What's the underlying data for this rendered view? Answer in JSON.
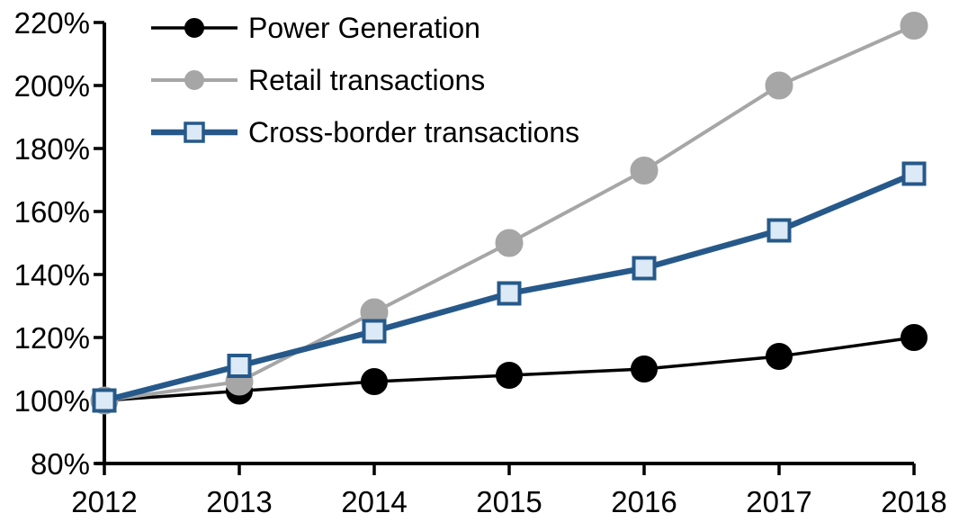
{
  "chart_data": {
    "type": "line",
    "title": "",
    "xlabel": "",
    "ylabel": "",
    "x": [
      "2012",
      "2013",
      "2014",
      "2015",
      "2016",
      "2017",
      "2018"
    ],
    "ylim": [
      80,
      220
    ],
    "ytick_step": 20,
    "ytick_suffix": "%",
    "grid": false,
    "legend_position": "top-left",
    "series": [
      {
        "name": "Power Generation",
        "values": [
          100,
          103,
          106,
          108,
          110,
          114,
          120
        ],
        "color": "#000000",
        "line_width": 3.5,
        "marker": "circle",
        "marker_size": 29,
        "marker_fill": "#000000",
        "marker_border": "#000000"
      },
      {
        "name": "Retail transactions",
        "values": [
          100,
          106,
          128,
          150,
          173,
          200,
          219
        ],
        "color": "#A6A6A6",
        "line_width": 4,
        "marker": "circle",
        "marker_size": 30,
        "marker_fill": "#A6A6A6",
        "marker_border": "#A6A6A6"
      },
      {
        "name": "Cross-border transactions",
        "values": [
          100,
          111,
          122,
          134,
          142,
          154,
          172
        ],
        "color": "#26598A",
        "line_width": 6.5,
        "marker": "square",
        "marker_size": 27,
        "marker_fill": "#DCE9F6",
        "marker_border": "#26598A"
      }
    ]
  }
}
